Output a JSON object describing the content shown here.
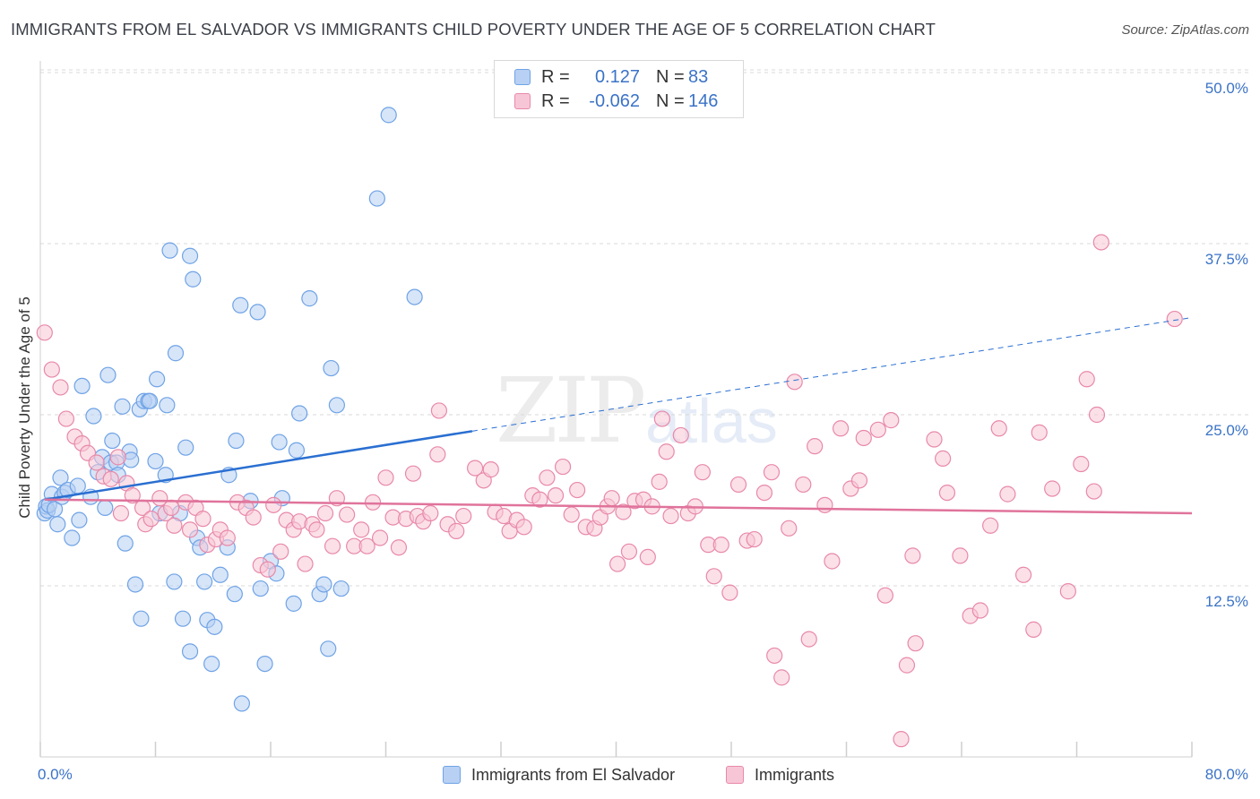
{
  "title": "IMMIGRANTS FROM EL SALVADOR VS IMMIGRANTS CHILD POVERTY UNDER THE AGE OF 5 CORRELATION CHART",
  "source": "Source: ZipAtlas.com",
  "watermark": {
    "zip": "ZIP",
    "atlas": "atlas"
  },
  "legend_top": [
    {
      "r_label": "R =",
      "r_value": "0.127",
      "n_label": "N =",
      "n_value": "83"
    },
    {
      "r_label": "R =",
      "r_value": "-0.062",
      "n_label": "N =",
      "n_value": "146"
    }
  ],
  "chart_data": {
    "type": "scatter",
    "title": "IMMIGRANTS FROM EL SALVADOR VS IMMIGRANTS CHILD POVERTY UNDER THE AGE OF 5 CORRELATION CHART",
    "xlabel": "",
    "ylabel": "Child Poverty Under the Age of 5",
    "xlim": [
      0,
      80
    ],
    "ylim": [
      0,
      52
    ],
    "x_tick_labels": [
      "0.0%",
      "80.0%"
    ],
    "y_ticks": [
      12.5,
      25.0,
      37.5,
      50.0
    ],
    "y_tick_labels": [
      "12.5%",
      "25.0%",
      "37.5%",
      "50.0%"
    ],
    "grid": "horizontal dashed",
    "legend_position": "bottom",
    "colors": {
      "blue": "#6fa3e6",
      "blue_fill": "#b7d0f3",
      "blue_line": "#2a6fd1",
      "pink": "#e889a9",
      "pink_fill": "#f7c6d6",
      "pink_line": "#e0739b"
    },
    "series": [
      {
        "name": "Immigrants from El Salvador",
        "color": "blue",
        "trend": {
          "x": [
            0.3,
            30.0
          ],
          "y": [
            18.8,
            23.8
          ],
          "dashed_to": [
            80.0,
            32.1
          ]
        },
        "points": [
          [
            0.3,
            17.8
          ],
          [
            0.4,
            18.3
          ],
          [
            0.5,
            18.0
          ],
          [
            0.6,
            18.4
          ],
          [
            0.8,
            19.2
          ],
          [
            1.0,
            18.1
          ],
          [
            1.2,
            17.0
          ],
          [
            1.4,
            20.4
          ],
          [
            1.5,
            19.0
          ],
          [
            1.7,
            19.3
          ],
          [
            1.9,
            19.5
          ],
          [
            2.2,
            16.0
          ],
          [
            2.6,
            19.8
          ],
          [
            2.7,
            17.3
          ],
          [
            2.9,
            27.1
          ],
          [
            3.5,
            19.0
          ],
          [
            3.7,
            24.9
          ],
          [
            4.0,
            20.8
          ],
          [
            4.3,
            21.9
          ],
          [
            4.5,
            18.2
          ],
          [
            4.7,
            27.9
          ],
          [
            4.9,
            21.5
          ],
          [
            5.0,
            23.1
          ],
          [
            5.3,
            21.5
          ],
          [
            5.4,
            20.6
          ],
          [
            5.7,
            25.6
          ],
          [
            5.9,
            15.6
          ],
          [
            6.2,
            22.3
          ],
          [
            6.3,
            21.7
          ],
          [
            6.6,
            12.6
          ],
          [
            6.9,
            25.4
          ],
          [
            7.0,
            10.1
          ],
          [
            7.2,
            26.0
          ],
          [
            7.5,
            26.0
          ],
          [
            7.6,
            26.0
          ],
          [
            8.0,
            21.6
          ],
          [
            8.1,
            27.6
          ],
          [
            8.3,
            17.8
          ],
          [
            8.7,
            20.6
          ],
          [
            8.8,
            25.7
          ],
          [
            9.0,
            37.0
          ],
          [
            9.3,
            12.8
          ],
          [
            9.4,
            29.5
          ],
          [
            9.7,
            17.8
          ],
          [
            9.9,
            10.1
          ],
          [
            10.1,
            22.6
          ],
          [
            10.4,
            7.7
          ],
          [
            10.4,
            36.6
          ],
          [
            10.6,
            34.9
          ],
          [
            10.9,
            16.0
          ],
          [
            11.1,
            15.3
          ],
          [
            11.4,
            12.8
          ],
          [
            11.6,
            10.0
          ],
          [
            11.9,
            6.8
          ],
          [
            12.1,
            9.5
          ],
          [
            12.5,
            13.3
          ],
          [
            13.0,
            15.3
          ],
          [
            13.1,
            20.6
          ],
          [
            13.5,
            11.9
          ],
          [
            13.6,
            23.1
          ],
          [
            13.9,
            33.0
          ],
          [
            14.0,
            3.9
          ],
          [
            14.6,
            18.7
          ],
          [
            15.1,
            32.5
          ],
          [
            15.3,
            12.3
          ],
          [
            15.6,
            6.8
          ],
          [
            16.0,
            14.3
          ],
          [
            16.4,
            13.4
          ],
          [
            16.6,
            23.0
          ],
          [
            16.8,
            18.9
          ],
          [
            17.6,
            11.2
          ],
          [
            17.8,
            22.4
          ],
          [
            18.0,
            25.1
          ],
          [
            18.7,
            33.5
          ],
          [
            19.4,
            11.9
          ],
          [
            19.7,
            12.6
          ],
          [
            20.0,
            7.9
          ],
          [
            20.2,
            28.4
          ],
          [
            20.6,
            25.7
          ],
          [
            20.9,
            12.3
          ],
          [
            23.4,
            40.8
          ],
          [
            24.2,
            46.9
          ],
          [
            26.0,
            33.6
          ]
        ]
      },
      {
        "name": "Immigrants",
        "color": "pink",
        "trend": {
          "x": [
            0.3,
            80.0
          ],
          "y": [
            18.8,
            17.8
          ]
        },
        "points": [
          [
            0.3,
            31.0
          ],
          [
            0.8,
            28.3
          ],
          [
            1.4,
            27.0
          ],
          [
            1.8,
            24.7
          ],
          [
            2.4,
            23.4
          ],
          [
            2.9,
            22.9
          ],
          [
            3.3,
            22.2
          ],
          [
            3.9,
            21.5
          ],
          [
            4.4,
            20.5
          ],
          [
            4.9,
            20.3
          ],
          [
            5.4,
            21.9
          ],
          [
            5.6,
            17.8
          ],
          [
            6.0,
            20.0
          ],
          [
            6.4,
            19.1
          ],
          [
            7.1,
            18.2
          ],
          [
            7.3,
            17.0
          ],
          [
            7.7,
            17.4
          ],
          [
            8.3,
            18.9
          ],
          [
            8.7,
            17.8
          ],
          [
            9.1,
            18.2
          ],
          [
            9.3,
            16.9
          ],
          [
            10.1,
            18.6
          ],
          [
            10.4,
            16.6
          ],
          [
            10.8,
            18.2
          ],
          [
            11.3,
            17.4
          ],
          [
            11.6,
            15.5
          ],
          [
            12.2,
            15.9
          ],
          [
            12.5,
            16.6
          ],
          [
            13.0,
            16.0
          ],
          [
            13.7,
            18.6
          ],
          [
            14.3,
            18.2
          ],
          [
            14.8,
            17.5
          ],
          [
            15.3,
            14.0
          ],
          [
            15.8,
            13.7
          ],
          [
            16.2,
            18.4
          ],
          [
            16.7,
            15.0
          ],
          [
            17.1,
            17.3
          ],
          [
            17.6,
            16.6
          ],
          [
            18.0,
            17.2
          ],
          [
            18.4,
            14.1
          ],
          [
            18.9,
            17.0
          ],
          [
            19.2,
            16.6
          ],
          [
            19.8,
            17.8
          ],
          [
            20.3,
            15.4
          ],
          [
            20.6,
            18.9
          ],
          [
            21.3,
            17.7
          ],
          [
            21.8,
            15.4
          ],
          [
            22.3,
            16.6
          ],
          [
            22.7,
            15.4
          ],
          [
            23.1,
            18.6
          ],
          [
            23.6,
            16.0
          ],
          [
            24.0,
            20.4
          ],
          [
            24.5,
            17.5
          ],
          [
            24.9,
            15.3
          ],
          [
            25.4,
            17.4
          ],
          [
            25.9,
            20.7
          ],
          [
            26.2,
            17.6
          ],
          [
            26.6,
            17.2
          ],
          [
            27.1,
            17.8
          ],
          [
            27.6,
            22.1
          ],
          [
            27.7,
            25.3
          ],
          [
            28.3,
            17.0
          ],
          [
            28.9,
            16.5
          ],
          [
            29.4,
            17.6
          ],
          [
            30.2,
            21.1
          ],
          [
            30.8,
            20.2
          ],
          [
            31.3,
            21.0
          ],
          [
            31.6,
            17.9
          ],
          [
            32.2,
            17.6
          ],
          [
            32.6,
            16.5
          ],
          [
            33.1,
            17.3
          ],
          [
            33.6,
            16.8
          ],
          [
            34.2,
            19.1
          ],
          [
            34.7,
            18.8
          ],
          [
            35.2,
            20.4
          ],
          [
            35.8,
            19.1
          ],
          [
            36.3,
            21.2
          ],
          [
            36.9,
            17.7
          ],
          [
            37.3,
            19.5
          ],
          [
            37.9,
            16.8
          ],
          [
            38.5,
            16.7
          ],
          [
            38.9,
            17.5
          ],
          [
            39.4,
            18.3
          ],
          [
            39.7,
            18.9
          ],
          [
            40.1,
            14.1
          ],
          [
            40.5,
            17.9
          ],
          [
            40.9,
            15.0
          ],
          [
            41.3,
            18.7
          ],
          [
            41.9,
            18.8
          ],
          [
            42.2,
            14.6
          ],
          [
            42.5,
            18.3
          ],
          [
            43.0,
            20.1
          ],
          [
            43.2,
            24.7
          ],
          [
            43.5,
            22.3
          ],
          [
            43.8,
            17.6
          ],
          [
            44.5,
            23.5
          ],
          [
            45.0,
            17.8
          ],
          [
            45.5,
            18.3
          ],
          [
            46.0,
            20.8
          ],
          [
            46.4,
            15.5
          ],
          [
            46.8,
            13.2
          ],
          [
            47.3,
            15.5
          ],
          [
            47.9,
            12.0
          ],
          [
            48.5,
            19.9
          ],
          [
            49.1,
            15.8
          ],
          [
            49.6,
            15.9
          ],
          [
            50.3,
            19.3
          ],
          [
            50.8,
            20.8
          ],
          [
            51.0,
            7.4
          ],
          [
            51.5,
            5.8
          ],
          [
            52.0,
            16.7
          ],
          [
            52.4,
            27.4
          ],
          [
            53.0,
            19.9
          ],
          [
            53.4,
            8.6
          ],
          [
            53.8,
            22.7
          ],
          [
            54.5,
            18.4
          ],
          [
            55.0,
            14.3
          ],
          [
            55.6,
            24.0
          ],
          [
            56.3,
            19.6
          ],
          [
            56.9,
            20.2
          ],
          [
            57.2,
            23.3
          ],
          [
            58.2,
            23.9
          ],
          [
            58.7,
            11.8
          ],
          [
            59.1,
            24.6
          ],
          [
            59.8,
            1.3
          ],
          [
            60.2,
            6.7
          ],
          [
            60.6,
            14.7
          ],
          [
            60.8,
            8.3
          ],
          [
            62.1,
            23.2
          ],
          [
            62.7,
            21.8
          ],
          [
            63.0,
            19.3
          ],
          [
            63.9,
            14.7
          ],
          [
            64.6,
            10.3
          ],
          [
            65.3,
            10.7
          ],
          [
            66.0,
            16.9
          ],
          [
            66.6,
            24.0
          ],
          [
            67.2,
            19.2
          ],
          [
            68.3,
            13.3
          ],
          [
            69.0,
            9.3
          ],
          [
            69.4,
            23.7
          ],
          [
            70.3,
            19.6
          ],
          [
            71.4,
            12.1
          ],
          [
            72.3,
            21.4
          ],
          [
            72.7,
            27.6
          ],
          [
            73.2,
            19.4
          ],
          [
            73.4,
            25.0
          ],
          [
            73.7,
            37.6
          ],
          [
            78.8,
            32.0
          ]
        ]
      }
    ]
  }
}
